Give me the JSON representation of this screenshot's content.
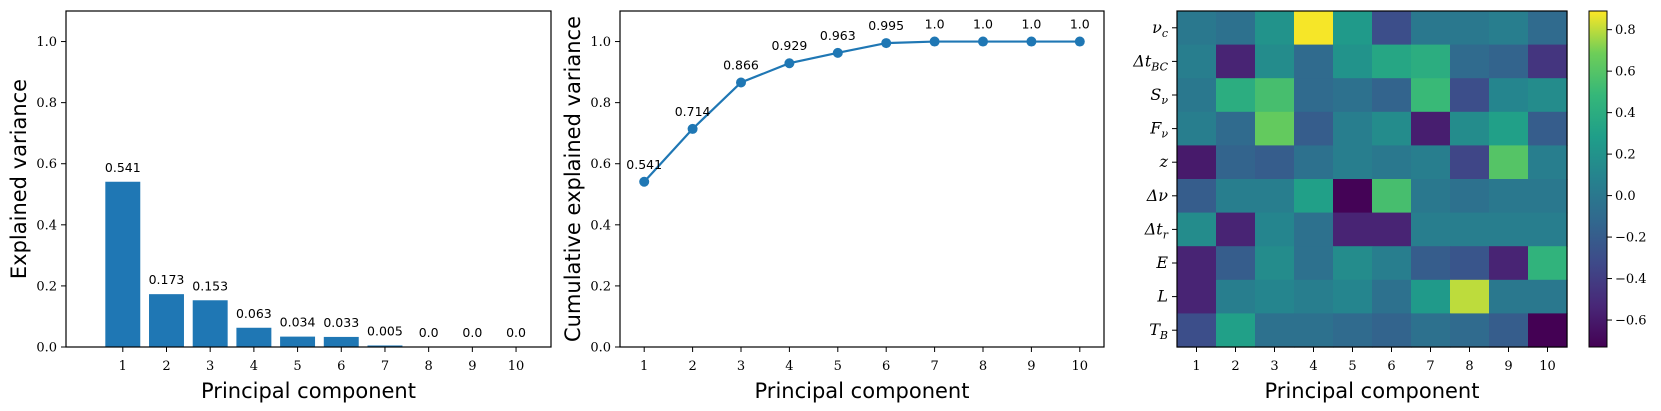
{
  "chart_data": [
    {
      "type": "bar",
      "title": "",
      "xlabel": "Principal component",
      "ylabel": "Explained variance",
      "categories": [
        "1",
        "2",
        "3",
        "4",
        "5",
        "6",
        "7",
        "8",
        "9",
        "10"
      ],
      "values": [
        0.541,
        0.173,
        0.153,
        0.063,
        0.034,
        0.033,
        0.005,
        0.0,
        0.0,
        0.0
      ],
      "data_labels": [
        "0.541",
        "0.173",
        "0.153",
        "0.063",
        "0.034",
        "0.033",
        "0.005",
        "0.0",
        "0.0",
        "0.0"
      ],
      "ylim": [
        0,
        1.1
      ],
      "yticks": [
        0.0,
        0.2,
        0.4,
        0.6,
        0.8,
        1.0
      ],
      "ytick_labels": [
        "0.0",
        "0.2",
        "0.4",
        "0.6",
        "0.8",
        "1.0"
      ],
      "color": "#1f77b4",
      "grid": false
    },
    {
      "type": "line",
      "title": "",
      "xlabel": "Principal component",
      "ylabel": "Cumulative explained variance",
      "x": [
        1,
        2,
        3,
        4,
        5,
        6,
        7,
        8,
        9,
        10
      ],
      "xtick_labels": [
        "1",
        "2",
        "3",
        "4",
        "5",
        "6",
        "7",
        "8",
        "9",
        "10"
      ],
      "values": [
        0.541,
        0.714,
        0.866,
        0.929,
        0.963,
        0.995,
        1.0,
        1.0,
        1.0,
        1.0
      ],
      "data_labels": [
        "0.541",
        "0.714",
        "0.866",
        "0.929",
        "0.963",
        "0.995",
        "1.0",
        "1.0",
        "1.0",
        "1.0"
      ],
      "ylim": [
        0,
        1.1
      ],
      "xlim": [
        0.5,
        10.5
      ],
      "yticks": [
        0.0,
        0.2,
        0.4,
        0.6,
        0.8,
        1.0
      ],
      "ytick_labels": [
        "0.0",
        "0.2",
        "0.4",
        "0.6",
        "0.8",
        "1.0"
      ],
      "color": "#1f77b4",
      "marker": "circle",
      "grid": false
    },
    {
      "type": "heatmap",
      "title": "",
      "xlabel": "Principal component",
      "ylabel": "",
      "columns": [
        "1",
        "2",
        "3",
        "4",
        "5",
        "6",
        "7",
        "8",
        "9",
        "10"
      ],
      "row_labels": [
        {
          "base": "ν",
          "sub": "c"
        },
        {
          "base": "Δt",
          "sub": "BC"
        },
        {
          "base": "S",
          "sub": "ν"
        },
        {
          "base": "F",
          "sub": "ν"
        },
        {
          "base": "z",
          "sub": ""
        },
        {
          "base": "Δν",
          "sub": ""
        },
        {
          "base": "Δt",
          "sub": "r"
        },
        {
          "base": "E",
          "sub": ""
        },
        {
          "base": "L",
          "sub": ""
        },
        {
          "base": "T",
          "sub": "B"
        }
      ],
      "values": [
        [
          0.0,
          -0.05,
          0.2,
          0.88,
          0.25,
          -0.3,
          0.0,
          0.0,
          0.05,
          -0.1
        ],
        [
          0.05,
          -0.55,
          0.15,
          -0.1,
          0.2,
          0.35,
          0.4,
          -0.1,
          -0.15,
          -0.45
        ],
        [
          0.0,
          0.4,
          0.55,
          -0.1,
          -0.05,
          -0.15,
          0.5,
          -0.3,
          0.1,
          0.15
        ],
        [
          0.05,
          -0.1,
          0.65,
          -0.2,
          0.05,
          0.15,
          -0.58,
          0.15,
          0.3,
          -0.2
        ],
        [
          -0.6,
          -0.15,
          -0.2,
          -0.05,
          0.05,
          0.0,
          0.05,
          -0.35,
          0.6,
          0.05
        ],
        [
          -0.2,
          0.05,
          0.05,
          0.3,
          -0.72,
          0.55,
          0.0,
          -0.05,
          0.0,
          0.0
        ],
        [
          0.15,
          -0.55,
          0.1,
          -0.05,
          -0.55,
          -0.55,
          0.05,
          0.05,
          0.05,
          0.05
        ],
        [
          -0.55,
          -0.2,
          0.15,
          -0.05,
          0.15,
          0.05,
          -0.2,
          -0.25,
          -0.55,
          0.45
        ],
        [
          -0.55,
          0.05,
          0.1,
          0.05,
          0.1,
          -0.05,
          0.25,
          0.8,
          0.0,
          0.0
        ],
        [
          -0.3,
          0.3,
          -0.05,
          -0.05,
          -0.1,
          -0.15,
          -0.05,
          -0.1,
          -0.2,
          -0.75
        ]
      ],
      "colormap": "viridis",
      "vmin": -0.73,
      "vmax": 0.89,
      "colorbar_ticks": [
        -0.6,
        -0.4,
        -0.2,
        0.0,
        0.2,
        0.4,
        0.6,
        0.8
      ],
      "colorbar_tick_labels": [
        "−0.6",
        "−0.4",
        "−0.2",
        "0.0",
        "0.2",
        "0.4",
        "0.6",
        "0.8"
      ]
    }
  ]
}
